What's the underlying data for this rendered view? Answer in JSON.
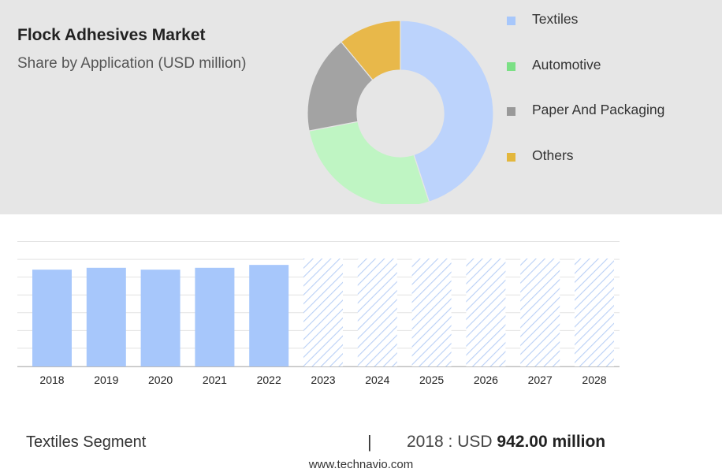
{
  "header": {
    "title": "Flock Adhesives Market",
    "subtitle": "Share by Application (USD million)"
  },
  "legend": {
    "items": [
      {
        "label": "Textiles",
        "color": "#a7c7fb"
      },
      {
        "label": "Automotive",
        "color": "#7be085"
      },
      {
        "label": "Paper And Packaging",
        "color": "#999999"
      },
      {
        "label": "Others",
        "color": "#e3b73d"
      }
    ]
  },
  "chart_data": [
    {
      "type": "pie",
      "title": "Flock Adhesives Market",
      "subtitle": "Share by Application (USD million)",
      "style": "donut",
      "categories": [
        "Textiles",
        "Automotive",
        "Paper And Packaging",
        "Others"
      ],
      "values": [
        45,
        27,
        17,
        11
      ],
      "colors": [
        "#bcd3fc",
        "#bff5c3",
        "#a3a3a3",
        "#e8b84a"
      ],
      "legend_position": "right"
    },
    {
      "type": "bar",
      "categories": [
        "2018",
        "2019",
        "2020",
        "2021",
        "2022",
        "2023",
        "2024",
        "2025",
        "2026",
        "2027",
        "2028"
      ],
      "values": [
        942,
        960,
        942,
        960,
        988,
        null,
        null,
        null,
        null,
        null,
        null
      ],
      "forecast_categories": [
        "2023",
        "2024",
        "2025",
        "2026",
        "2027",
        "2028"
      ],
      "ylim": [
        0,
        1480
      ],
      "y_tick_labels_shown": false,
      "grid": true,
      "bar_color": "#a7c7fb",
      "forecast_style": "hatched"
    }
  ],
  "footer": {
    "segment": "Textiles Segment",
    "separator": "|",
    "value_prefix": "2018 : USD ",
    "value_bold": "942.00 million"
  },
  "source": "www.technavio.com"
}
